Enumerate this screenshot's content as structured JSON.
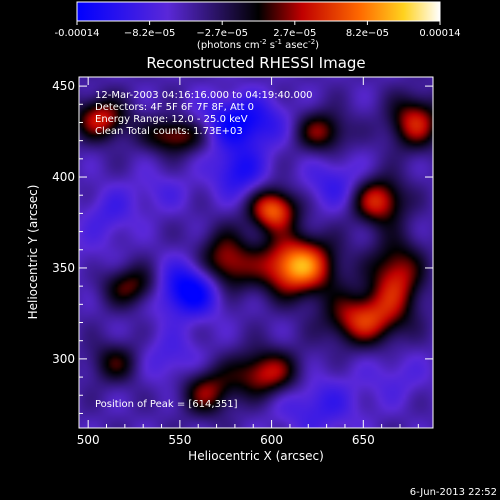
{
  "chart_data": {
    "type": "heatmap",
    "title": "Reconstructed RHESSI Image",
    "xlabel": "Heliocentric X (arcsec)",
    "ylabel": "Heliocentric Y (arcsec)",
    "xlim": [
      495,
      688
    ],
    "ylim": [
      262,
      455
    ],
    "x_ticks": [
      500,
      550,
      600,
      650
    ],
    "y_ticks": [
      300,
      350,
      400,
      450
    ],
    "colorbar": {
      "ticks": [
        "-0.00014",
        "−8.2e−05",
        "−2.7e−05",
        "2.7e−05",
        "8.2e−05",
        "0.00014"
      ],
      "range": [
        -0.00014,
        0.00014
      ],
      "unit_text": "(photons cm",
      "unit_sup1": "-2",
      "unit_mid": " s",
      "unit_sup2": "-1",
      "unit_end": " asec",
      "unit_sup3": "-2",
      "unit_close": ")"
    },
    "annotations": [
      "12-Mar-2003 04:16:16.000 to 04:19:40.000",
      "Detectors: 4F 5F 6F 7F 8F, Att 0",
      "Energy Range: 12.0 - 25.0 keV",
      "Clean    Total counts: 1.73E+03"
    ],
    "peak_label": "Position of Peak = [614,351]",
    "peak": [
      614,
      351
    ],
    "sources": [
      {
        "x": 614,
        "y": 351,
        "v": 0.00014,
        "sx": 14,
        "sy": 11
      },
      {
        "x": 601,
        "y": 382,
        "v": 0.00011,
        "sx": 9,
        "sy": 8
      },
      {
        "x": 575,
        "y": 352,
        "v": 8e-05,
        "sx": 10,
        "sy": 12
      },
      {
        "x": 650,
        "y": 322,
        "v": 9e-05,
        "sx": 14,
        "sy": 10
      },
      {
        "x": 668,
        "y": 345,
        "v": 8e-05,
        "sx": 10,
        "sy": 14
      },
      {
        "x": 658,
        "y": 387,
        "v": 9e-05,
        "sx": 10,
        "sy": 9
      },
      {
        "x": 597,
        "y": 292,
        "v": 8e-05,
        "sx": 13,
        "sy": 9
      },
      {
        "x": 548,
        "y": 423,
        "v": 7e-05,
        "sx": 12,
        "sy": 7
      },
      {
        "x": 507,
        "y": 432,
        "v": 8e-05,
        "sx": 10,
        "sy": 8
      },
      {
        "x": 678,
        "y": 430,
        "v": 8e-05,
        "sx": 10,
        "sy": 10
      },
      {
        "x": 525,
        "y": 340,
        "v": 6e-05,
        "sx": 12,
        "sy": 8
      },
      {
        "x": 627,
        "y": 425,
        "v": 6e-05,
        "sx": 10,
        "sy": 8
      },
      {
        "x": 565,
        "y": 282,
        "v": 6e-05,
        "sx": 10,
        "sy": 9
      },
      {
        "x": 515,
        "y": 298,
        "v": 4e-05,
        "sx": 10,
        "sy": 8
      },
      {
        "x": 555,
        "y": 338,
        "v": -0.00012,
        "sx": 14,
        "sy": 10
      },
      {
        "x": 583,
        "y": 430,
        "v": -0.0001,
        "sx": 16,
        "sy": 10
      },
      {
        "x": 582,
        "y": 403,
        "v": -8e-05,
        "sx": 10,
        "sy": 10
      },
      {
        "x": 635,
        "y": 396,
        "v": -6e-05,
        "sx": 12,
        "sy": 10
      },
      {
        "x": 625,
        "y": 275,
        "v": -6e-05,
        "sx": 16,
        "sy": 12
      },
      {
        "x": 512,
        "y": 380,
        "v": -5e-05,
        "sx": 10,
        "sy": 10
      },
      {
        "x": 545,
        "y": 300,
        "v": -5e-05,
        "sx": 12,
        "sy": 10
      },
      {
        "x": 668,
        "y": 290,
        "v": -4e-05,
        "sx": 12,
        "sy": 10
      },
      {
        "x": 540,
        "y": 392,
        "v": -4e-05,
        "sx": 12,
        "sy": 8
      },
      {
        "x": 500,
        "y": 355,
        "v": -3e-05,
        "sx": 10,
        "sy": 12
      }
    ]
  },
  "footer": {
    "date": "6-Jun-2013 22:52"
  }
}
